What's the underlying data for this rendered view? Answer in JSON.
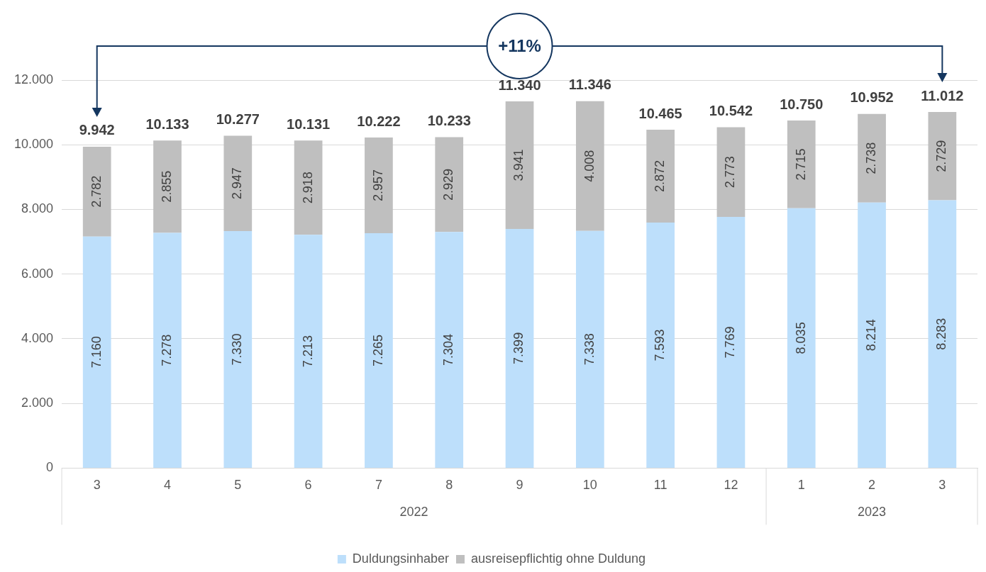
{
  "chart_data": {
    "type": "bar",
    "stacked": true,
    "categories": [
      "3",
      "4",
      "5",
      "6",
      "7",
      "8",
      "9",
      "10",
      "11",
      "12",
      "1",
      "2",
      "3"
    ],
    "series": [
      {
        "name": "Duldungsinhaber",
        "color": "#bddffb",
        "values": [
          7160,
          7278,
          7330,
          7213,
          7265,
          7304,
          7399,
          7338,
          7593,
          7769,
          8035,
          8214,
          8283
        ],
        "value_labels": [
          "7.160",
          "7.278",
          "7.330",
          "7.213",
          "7.265",
          "7.304",
          "7.399",
          "7.338",
          "7.593",
          "7.769",
          "8.035",
          "8.214",
          "8.283"
        ]
      },
      {
        "name": "ausreisepflichtig ohne Duldung",
        "color": "#bfbfbf",
        "values": [
          2782,
          2855,
          2947,
          2918,
          2957,
          2929,
          3941,
          4008,
          2872,
          2773,
          2715,
          2738,
          2729
        ],
        "value_labels": [
          "2.782",
          "2.855",
          "2.947",
          "2.918",
          "2.957",
          "2.929",
          "3.941",
          "4.008",
          "2.872",
          "2.773",
          "2.715",
          "2.738",
          "2.729"
        ]
      }
    ],
    "totals": [
      "9.942",
      "10.133",
      "10.277",
      "10.131",
      "10.222",
      "10.233",
      "11.340",
      "11.346",
      "10.465",
      "10.542",
      "10.750",
      "10.952",
      "11.012"
    ],
    "ylim": [
      0,
      12000
    ],
    "yticks": [
      {
        "value": 0,
        "label": "0"
      },
      {
        "value": 2000,
        "label": "2.000"
      },
      {
        "value": 4000,
        "label": "4.000"
      },
      {
        "value": 6000,
        "label": "6.000"
      },
      {
        "value": 8000,
        "label": "8.000"
      },
      {
        "value": 10000,
        "label": "10.000"
      },
      {
        "value": 12000,
        "label": "12.000"
      }
    ],
    "grid": "y",
    "legend": "bottom",
    "annotations": [
      "+11%",
      "2022",
      "2023"
    ]
  }
}
